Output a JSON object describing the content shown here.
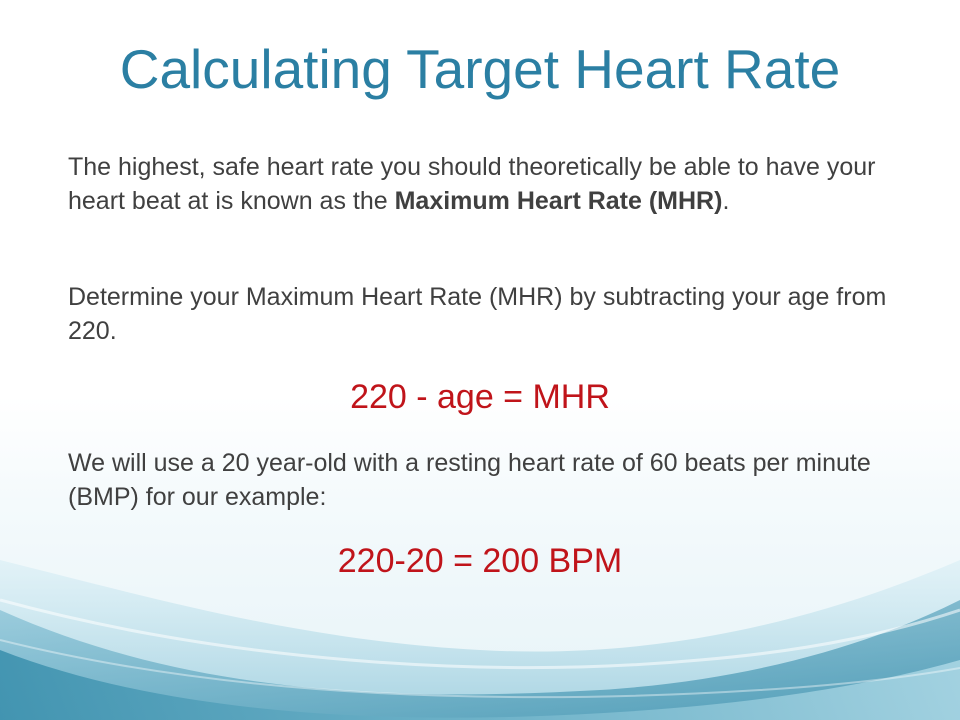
{
  "slide": {
    "title": "Calculating Target Heart Rate",
    "paragraph1": {
      "before": "The highest, safe heart rate you should theoretically be able to have your heart beat at is known as the ",
      "bold": "Maximum Heart Rate (MHR)",
      "after": "."
    },
    "paragraph2": "Determine your Maximum Heart Rate (MHR) by subtracting your age from 220.",
    "formula1": "220 - age = MHR",
    "paragraph3": "We will use a 20 year-old with a resting heart rate of 60 beats per minute (BMP) for our example:",
    "formula2": "220-20 = 200 BPM"
  },
  "colors": {
    "title": "#2b7fa3",
    "body_text": "#404040",
    "formula": "#c0141a",
    "wave_dark": "#4a9bb7",
    "wave_light": "#cfe8f0"
  }
}
